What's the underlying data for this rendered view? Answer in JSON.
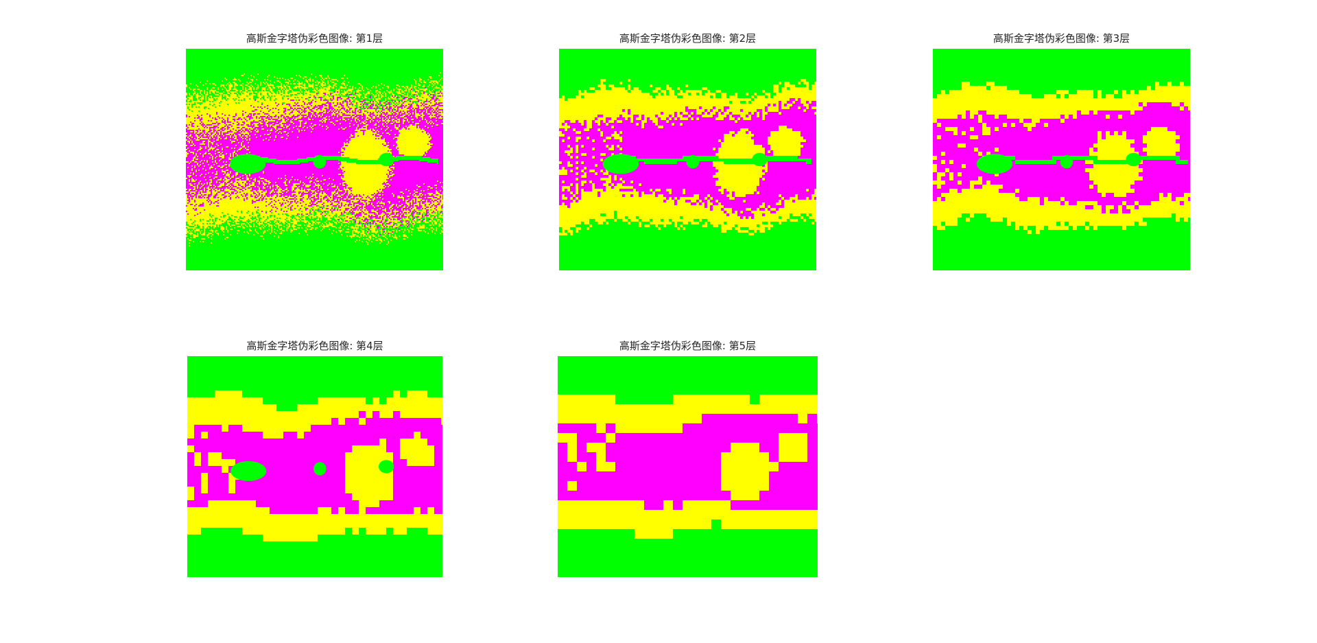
{
  "figure": {
    "subplots": [
      {
        "title": "高斯金字塔伪彩色图像: 第1层",
        "level": 1
      },
      {
        "title": "高斯金字塔伪彩色图像: 第2层",
        "level": 2
      },
      {
        "title": "高斯金字塔伪彩色图像: 第3层",
        "level": 3
      },
      {
        "title": "高斯金字塔伪彩色图像: 第4层",
        "level": 4
      },
      {
        "title": "高斯金字塔伪彩色图像: 第5层",
        "level": 5
      }
    ],
    "colors": {
      "green": "#00ff00",
      "yellow": "#ffff00",
      "magenta": "#ff00ff",
      "background": "#ffffff"
    }
  }
}
